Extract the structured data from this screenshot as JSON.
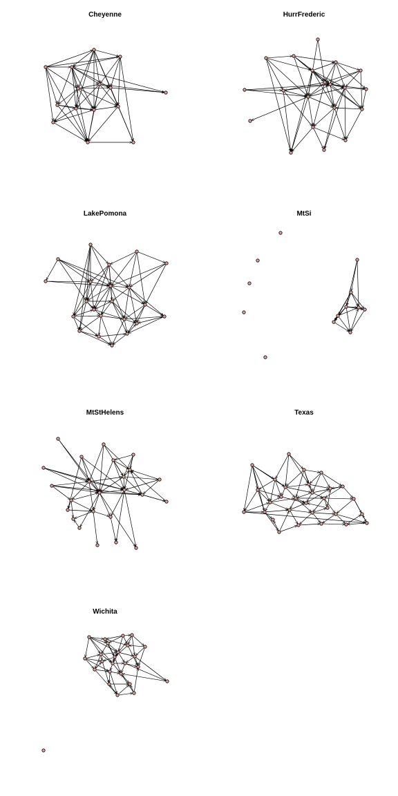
{
  "figure": {
    "panels": [
      {
        "title": "Cheyenne",
        "node_count": 15
      },
      {
        "title": "HurrFrederic",
        "node_count": 20
      },
      {
        "title": "LakePomona",
        "node_count": 22
      },
      {
        "title": "MtSi",
        "node_count": 13
      },
      {
        "title": "MtStHelens",
        "node_count": 24
      },
      {
        "title": "Texas",
        "node_count": 30
      },
      {
        "title": "Wichita",
        "node_count": 25
      }
    ],
    "colors": {
      "node_fill": "#e8a0a0",
      "node_stroke": "#000000",
      "edge": "#000000",
      "background": "#ffffff"
    }
  }
}
